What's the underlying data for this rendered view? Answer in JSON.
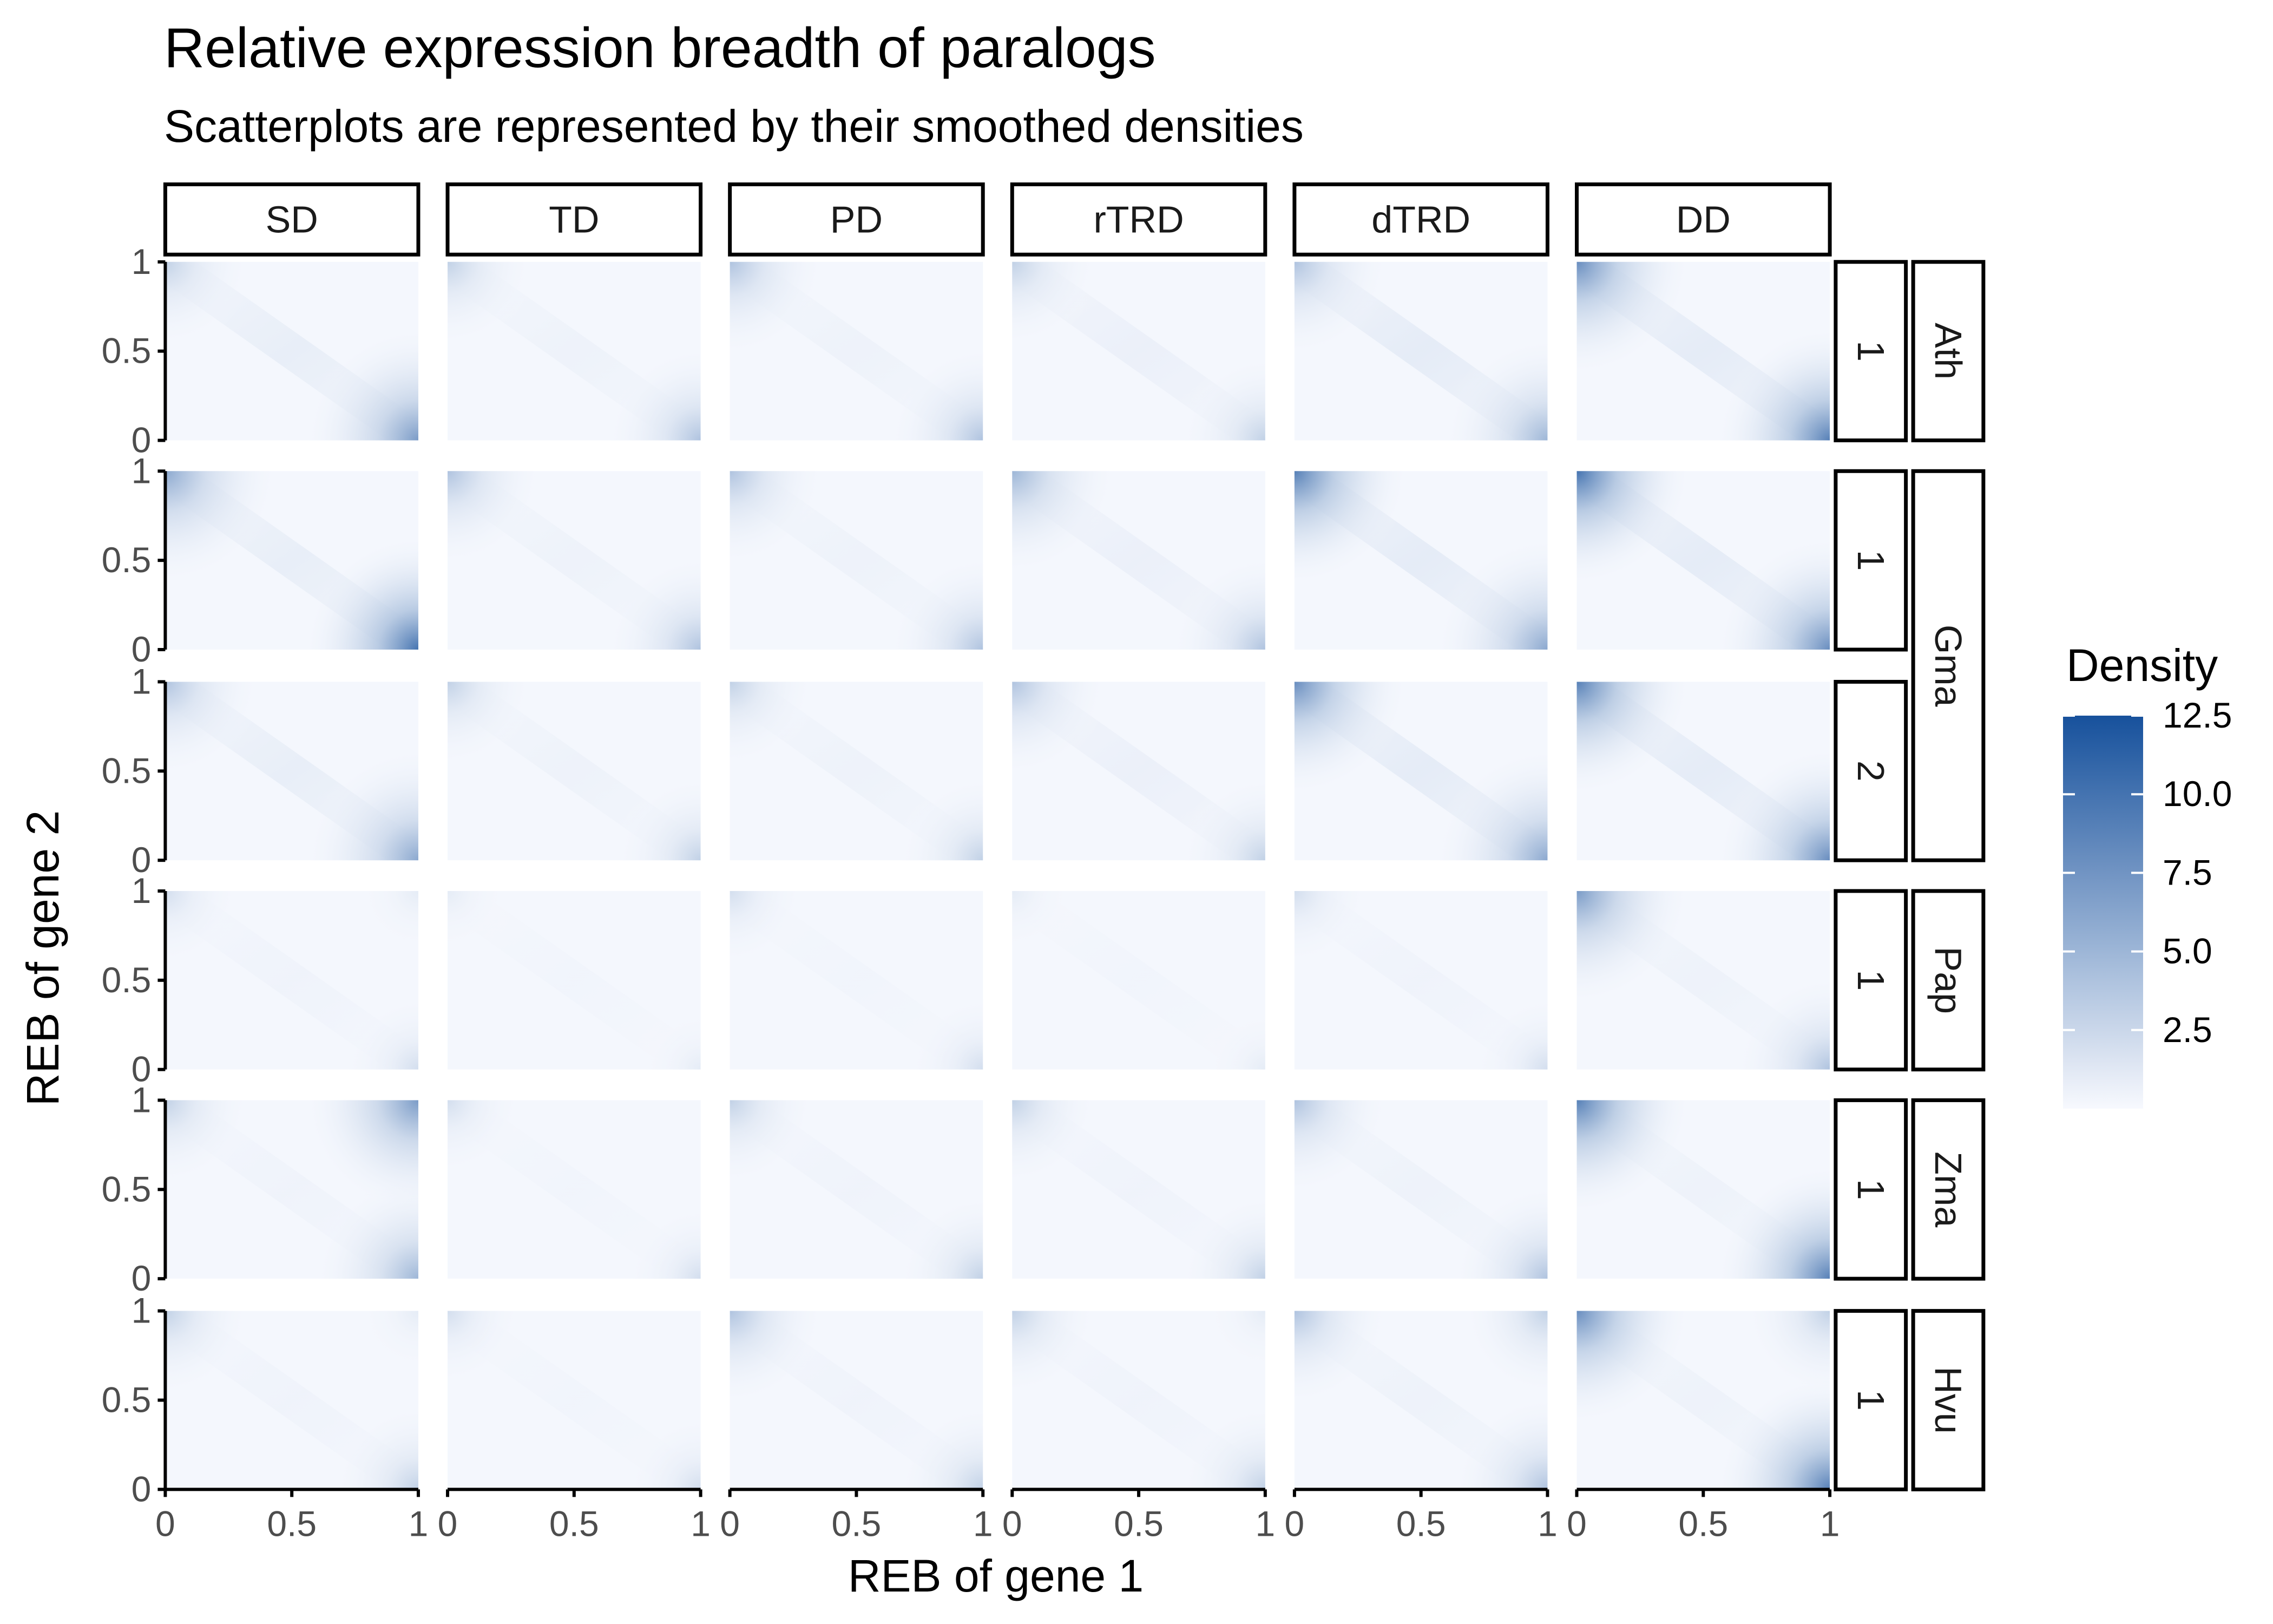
{
  "chart_data": {
    "type": "heatmap",
    "title": "Relative expression breadth of paralogs",
    "subtitle": "Scatterplots are represented by their smoothed densities",
    "xlabel": "REB of gene 1",
    "ylabel": "REB of gene 2",
    "xlim": [
      0,
      1
    ],
    "ylim": [
      0,
      1
    ],
    "x_tick_labels": [
      "0",
      "0.5",
      "1"
    ],
    "y_tick_labels": [
      "0",
      "0.5",
      "1"
    ],
    "columns": [
      "SD",
      "TD",
      "PD",
      "rTRD",
      "dTRD",
      "DD"
    ],
    "rows": [
      {
        "species": "Ath",
        "cluster": "1"
      },
      {
        "species": "Gma",
        "cluster": "1"
      },
      {
        "species": "Gma",
        "cluster": "2"
      },
      {
        "species": "Pap",
        "cluster": "1"
      },
      {
        "species": "Zma",
        "cluster": "1"
      },
      {
        "species": "Hvu",
        "cluster": "1"
      }
    ],
    "species_strips": [
      {
        "label": "Ath",
        "rows": [
          0
        ]
      },
      {
        "label": "Gma",
        "rows": [
          1,
          2
        ]
      },
      {
        "label": "Pap",
        "rows": [
          3
        ]
      },
      {
        "label": "Zma",
        "rows": [
          4
        ]
      },
      {
        "label": "Hvu",
        "rows": [
          5
        ]
      }
    ],
    "peak_density": {
      "note_columns": [
        "SD",
        "TD",
        "PD",
        "rTRD",
        "dTRD",
        "DD"
      ],
      "top_left": [
        [
          3,
          3,
          4,
          3,
          4,
          8
        ],
        [
          6,
          4,
          4,
          5,
          9,
          10
        ],
        [
          4,
          3,
          3,
          4,
          8,
          9
        ],
        [
          2,
          1,
          2,
          1,
          2,
          7
        ],
        [
          3,
          2,
          3,
          3,
          4,
          9
        ],
        [
          3,
          2,
          4,
          3,
          4,
          8
        ]
      ],
      "bottom_right": [
        [
          7,
          4,
          4,
          3,
          5,
          9
        ],
        [
          10,
          4,
          4,
          4,
          6,
          8
        ],
        [
          6,
          3,
          3,
          3,
          6,
          8
        ],
        [
          2,
          1,
          2,
          1,
          2,
          4
        ],
        [
          5,
          2,
          3,
          3,
          4,
          9
        ],
        [
          3,
          2,
          3,
          3,
          4,
          9
        ]
      ],
      "top_right": [
        [
          0,
          0,
          0,
          0,
          0,
          0
        ],
        [
          0,
          0,
          0,
          0,
          0,
          0
        ],
        [
          0,
          0,
          0,
          0,
          0,
          0
        ],
        [
          1,
          0,
          0,
          0,
          0,
          0
        ],
        [
          7,
          0,
          0,
          0,
          0,
          0
        ],
        [
          1,
          0,
          0,
          1,
          3,
          3
        ]
      ],
      "diagonal_band": [
        [
          1,
          0.6,
          0.6,
          0.8,
          1.2,
          1.2
        ],
        [
          1,
          0.6,
          0.6,
          0.8,
          1.2,
          1.2
        ],
        [
          1,
          0.6,
          0.6,
          0.8,
          1.2,
          1.2
        ],
        [
          0.5,
          0.4,
          0.4,
          0.4,
          0.5,
          0.6
        ],
        [
          0.5,
          0.4,
          0.5,
          0.5,
          0.6,
          0.6
        ],
        [
          0.5,
          0.4,
          0.5,
          0.5,
          0.6,
          0.6
        ]
      ]
    },
    "legend": {
      "title": "Density",
      "placement": "right",
      "min": 0,
      "max": 12.5,
      "ticks": [
        "2.5",
        "5.0",
        "7.5",
        "10.0",
        "12.5"
      ],
      "color_low": "#f7f9fe",
      "color_high": "#17519c"
    }
  }
}
